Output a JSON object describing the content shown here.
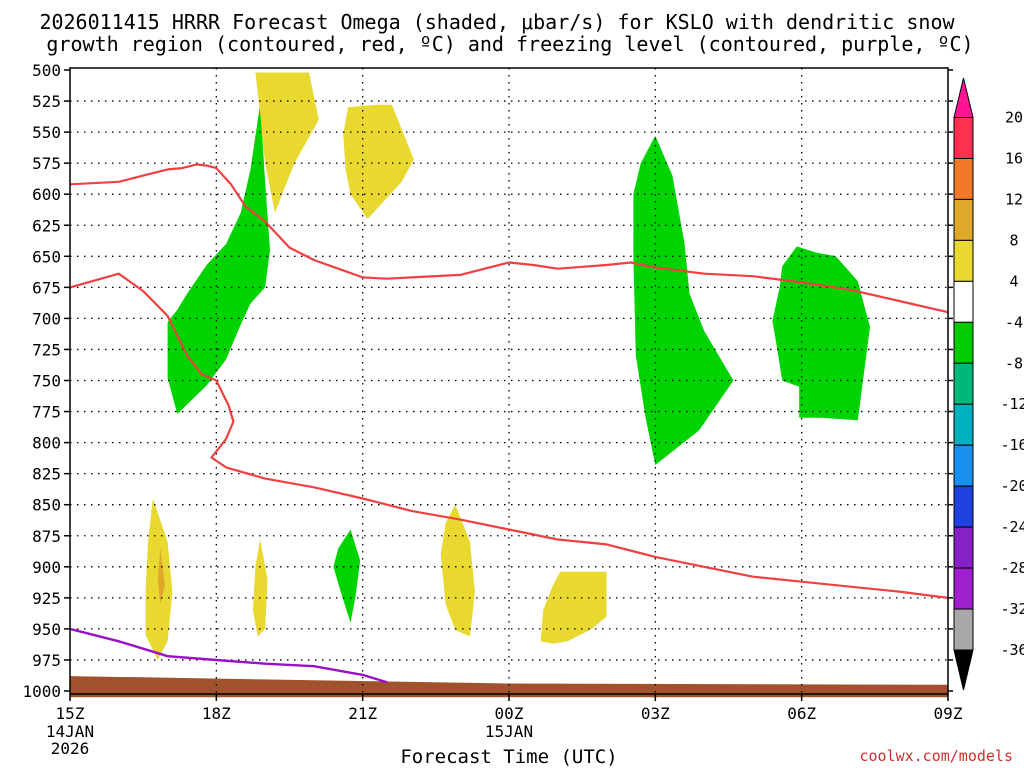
{
  "chart_data": {
    "type": "contour",
    "title_line1": "2026011415 HRRR Forecast Omega (shaded, μbar/s) for KSLO with dendritic snow",
    "title_line2": "growth region (contoured, red, ºC) and freezing level (contoured, purple, ºC)",
    "xlabel": "Forecast Time (UTC)",
    "credit": "coolwx.com/models",
    "y_ticks": [
      500,
      525,
      550,
      575,
      600,
      625,
      650,
      675,
      700,
      725,
      750,
      775,
      800,
      825,
      850,
      875,
      900,
      925,
      950,
      975,
      1000
    ],
    "x_ticks": [
      {
        "hour": 0,
        "label": "15Z",
        "sub1": "14JAN",
        "sub2": "2026"
      },
      {
        "hour": 3,
        "label": "18Z",
        "sub1": "",
        "sub2": ""
      },
      {
        "hour": 6,
        "label": "21Z",
        "sub1": "",
        "sub2": ""
      },
      {
        "hour": 9,
        "label": "00Z",
        "sub1": "15JAN",
        "sub2": ""
      },
      {
        "hour": 12,
        "label": "03Z",
        "sub1": "",
        "sub2": ""
      },
      {
        "hour": 15,
        "label": "06Z",
        "sub1": "",
        "sub2": ""
      },
      {
        "hour": 18,
        "label": "09Z",
        "sub1": "",
        "sub2": ""
      }
    ],
    "colorbar": {
      "levels": [
        "20",
        "16",
        "12",
        "8",
        "4",
        "-4",
        "-8",
        "-12",
        "-16",
        "-20",
        "-24",
        "-28",
        "-32",
        "-36"
      ],
      "colors": [
        "#ff3050",
        "#f07828",
        "#e0a828",
        "#e8d830",
        "#ffffff",
        "#00cc00",
        "#00b878",
        "#00b0c0",
        "#1890f0",
        "#2040e0",
        "#8820c8",
        "#a020d0",
        "#a8a8a8"
      ],
      "top_color": "#ff1493",
      "bottom_color": "#000000"
    },
    "ground": {
      "color": "#a0522d",
      "points": [
        [
          0,
          988
        ],
        [
          9,
          994
        ],
        [
          18,
          995
        ]
      ]
    },
    "shaded": [
      {
        "name": "green-area-1",
        "color": "#00d400",
        "points": [
          [
            2.0,
            703
          ],
          [
            2.0,
            748
          ],
          [
            2.2,
            777
          ],
          [
            2.8,
            754
          ],
          [
            3.2,
            733
          ],
          [
            3.5,
            705
          ],
          [
            3.7,
            688
          ],
          [
            4.0,
            675
          ],
          [
            4.1,
            645
          ],
          [
            4.0,
            590
          ],
          [
            3.9,
            527
          ],
          [
            3.7,
            580
          ],
          [
            3.5,
            615
          ],
          [
            3.2,
            640
          ],
          [
            2.8,
            657
          ],
          [
            2.4,
            680
          ],
          [
            2.2,
            693
          ]
        ]
      },
      {
        "name": "green-area-2",
        "color": "#00d400",
        "points": [
          [
            12.0,
            553
          ],
          [
            12.35,
            585
          ],
          [
            12.6,
            640
          ],
          [
            12.7,
            680
          ],
          [
            13.0,
            710
          ],
          [
            13.6,
            750
          ],
          [
            12.9,
            790
          ],
          [
            12.0,
            818
          ],
          [
            11.8,
            780
          ],
          [
            11.6,
            730
          ],
          [
            11.55,
            650
          ],
          [
            11.55,
            600
          ],
          [
            11.7,
            575
          ]
        ]
      },
      {
        "name": "green-area-3",
        "color": "#00d400",
        "points": [
          [
            14.9,
            642
          ],
          [
            15.3,
            647
          ],
          [
            15.7,
            650
          ],
          [
            16.15,
            670
          ],
          [
            16.4,
            707
          ],
          [
            16.15,
            782
          ],
          [
            15.4,
            780
          ],
          [
            14.95,
            780
          ],
          [
            14.95,
            755
          ],
          [
            14.6,
            750
          ],
          [
            14.5,
            725
          ],
          [
            14.4,
            702
          ],
          [
            14.55,
            675
          ],
          [
            14.6,
            658
          ]
        ]
      },
      {
        "name": "yellow-area-1",
        "color": "#e8d830",
        "points": [
          [
            3.8,
            502
          ],
          [
            4.9,
            502
          ],
          [
            5.1,
            540
          ],
          [
            4.6,
            575
          ],
          [
            4.2,
            615
          ],
          [
            4.0,
            575
          ],
          [
            3.9,
            535
          ]
        ]
      },
      {
        "name": "yellow-area-2",
        "color": "#e8d830",
        "points": [
          [
            6.3,
            528
          ],
          [
            6.6,
            528
          ],
          [
            7.05,
            572
          ],
          [
            6.8,
            590
          ],
          [
            6.1,
            620
          ],
          [
            5.75,
            600
          ],
          [
            5.65,
            580
          ],
          [
            5.6,
            552
          ],
          [
            5.7,
            530
          ]
        ]
      },
      {
        "name": "yellow-area-3",
        "color": "#e8d830",
        "points": [
          [
            1.7,
            845
          ],
          [
            2.0,
            880
          ],
          [
            2.1,
            920
          ],
          [
            2.0,
            960
          ],
          [
            1.8,
            975
          ],
          [
            1.55,
            955
          ],
          [
            1.55,
            920
          ],
          [
            1.6,
            880
          ]
        ]
      },
      {
        "name": "yellow-area-4",
        "color": "#e8d830",
        "points": [
          [
            3.9,
            878
          ],
          [
            4.05,
            910
          ],
          [
            4.0,
            950
          ],
          [
            3.85,
            956
          ],
          [
            3.75,
            935
          ],
          [
            3.8,
            900
          ]
        ]
      },
      {
        "name": "yellow-area-5",
        "color": "#e8d830",
        "points": [
          [
            7.9,
            850
          ],
          [
            8.2,
            880
          ],
          [
            8.3,
            920
          ],
          [
            8.2,
            956
          ],
          [
            7.9,
            951
          ],
          [
            7.7,
            930
          ],
          [
            7.6,
            890
          ],
          [
            7.7,
            865
          ]
        ]
      },
      {
        "name": "yellow-area-6",
        "color": "#e8d830",
        "points": [
          [
            10.05,
            904
          ],
          [
            11.0,
            904
          ],
          [
            11.0,
            940
          ],
          [
            10.7,
            950
          ],
          [
            10.2,
            960
          ],
          [
            9.9,
            962
          ],
          [
            9.65,
            960
          ],
          [
            9.7,
            935
          ],
          [
            9.9,
            915
          ]
        ]
      },
      {
        "name": "orange-area-1",
        "color": "#e0a828",
        "points": [
          [
            1.85,
            885
          ],
          [
            1.95,
            915
          ],
          [
            1.85,
            930
          ],
          [
            1.8,
            910
          ]
        ]
      },
      {
        "name": "green-area-4",
        "color": "#00d400",
        "points": [
          [
            5.75,
            870
          ],
          [
            5.95,
            895
          ],
          [
            5.85,
            925
          ],
          [
            5.75,
            945
          ],
          [
            5.55,
            920
          ],
          [
            5.4,
            900
          ],
          [
            5.5,
            885
          ]
        ]
      }
    ],
    "red_lines": [
      {
        "name": "red-contour-upper",
        "points": [
          [
            0,
            592
          ],
          [
            1.0,
            590
          ],
          [
            1.5,
            585
          ],
          [
            2.0,
            580
          ],
          [
            2.3,
            579
          ],
          [
            2.6,
            576
          ],
          [
            2.8,
            577
          ],
          [
            3.0,
            579
          ],
          [
            3.3,
            592
          ],
          [
            3.6,
            610
          ],
          [
            4.0,
            622
          ],
          [
            4.5,
            643
          ],
          [
            5.0,
            653
          ],
          [
            5.5,
            660
          ],
          [
            6.0,
            667
          ],
          [
            6.5,
            668
          ],
          [
            7.0,
            667
          ],
          [
            8.0,
            665
          ],
          [
            9.0,
            655
          ],
          [
            9.5,
            657
          ],
          [
            10.0,
            660
          ],
          [
            11.0,
            657
          ],
          [
            11.5,
            655
          ],
          [
            12.0,
            659
          ],
          [
            13.0,
            664
          ],
          [
            14.0,
            666
          ],
          [
            15.0,
            671
          ],
          [
            16.0,
            677
          ],
          [
            17.0,
            686
          ],
          [
            18.0,
            695
          ]
        ]
      },
      {
        "name": "red-contour-lower",
        "points": [
          [
            0,
            675
          ],
          [
            1.0,
            664
          ],
          [
            1.5,
            678
          ],
          [
            2.0,
            698
          ],
          [
            2.4,
            730
          ],
          [
            2.7,
            745
          ],
          [
            3.0,
            750
          ],
          [
            3.25,
            770
          ],
          [
            3.35,
            783
          ],
          [
            3.2,
            797
          ],
          [
            2.9,
            812
          ],
          [
            3.2,
            820
          ],
          [
            4.0,
            829
          ],
          [
            5.0,
            836
          ],
          [
            6.0,
            845
          ],
          [
            7.0,
            855
          ],
          [
            8.0,
            862
          ],
          [
            9.0,
            870
          ],
          [
            10.0,
            878
          ],
          [
            11.0,
            882
          ],
          [
            12.0,
            892
          ],
          [
            13.0,
            900
          ],
          [
            14.0,
            908
          ],
          [
            15.0,
            912
          ],
          [
            16.0,
            916
          ],
          [
            17.0,
            920
          ],
          [
            18.0,
            925
          ]
        ]
      }
    ],
    "purple_line": {
      "name": "freezing-level-contour",
      "points": [
        [
          0,
          950
        ],
        [
          1.0,
          960
        ],
        [
          2.0,
          972
        ],
        [
          3.0,
          975
        ],
        [
          4.0,
          978
        ],
        [
          5.0,
          980
        ],
        [
          6.0,
          987
        ],
        [
          6.5,
          993
        ]
      ]
    }
  }
}
